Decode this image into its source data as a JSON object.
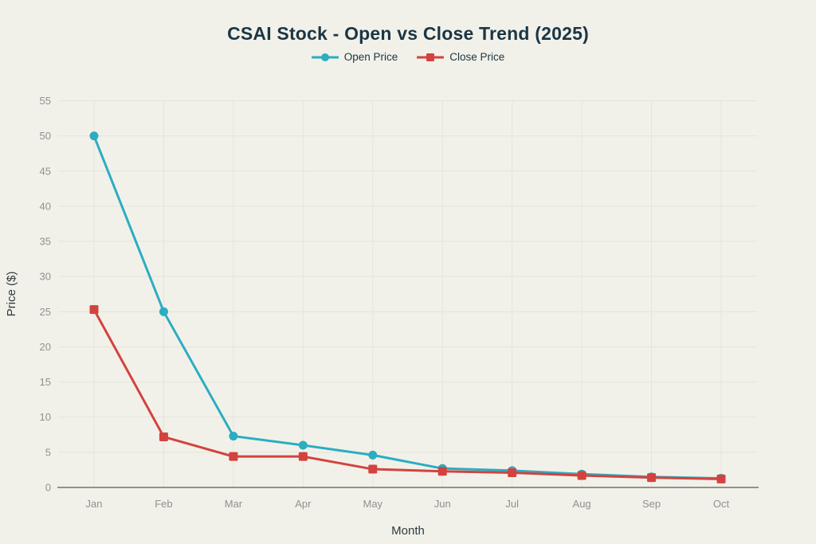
{
  "page": {
    "background": "#f2f1e9",
    "title_color": "#1b3645",
    "grid_color": "#e5e4db",
    "axis_line_color": "#73736d",
    "tick_color": "#8f918b",
    "axis_label_color": "#2f3a40",
    "legend_text_color": "#1b3645"
  },
  "chart_data": {
    "type": "line",
    "title": "CSAI Stock - Open vs Close Trend (2025)",
    "xlabel": "Month",
    "ylabel": "Price ($)",
    "categories": [
      "Jan",
      "Feb",
      "Mar",
      "Apr",
      "May",
      "Jun",
      "Jul",
      "Aug",
      "Sep",
      "Oct"
    ],
    "series": [
      {
        "name": "Open Price",
        "color": "#2badc2",
        "marker": "circle",
        "values": [
          50.0,
          25.0,
          7.3,
          6.0,
          4.6,
          2.7,
          2.4,
          1.9,
          1.5,
          1.3
        ]
      },
      {
        "name": "Close Price",
        "color": "#d2433f",
        "marker": "square",
        "values": [
          25.3,
          7.2,
          4.4,
          4.4,
          2.6,
          2.3,
          2.1,
          1.7,
          1.4,
          1.2
        ]
      }
    ],
    "ylim": [
      0,
      55
    ],
    "ytick_step": 5,
    "grid": true,
    "legend_position": "top-center"
  }
}
